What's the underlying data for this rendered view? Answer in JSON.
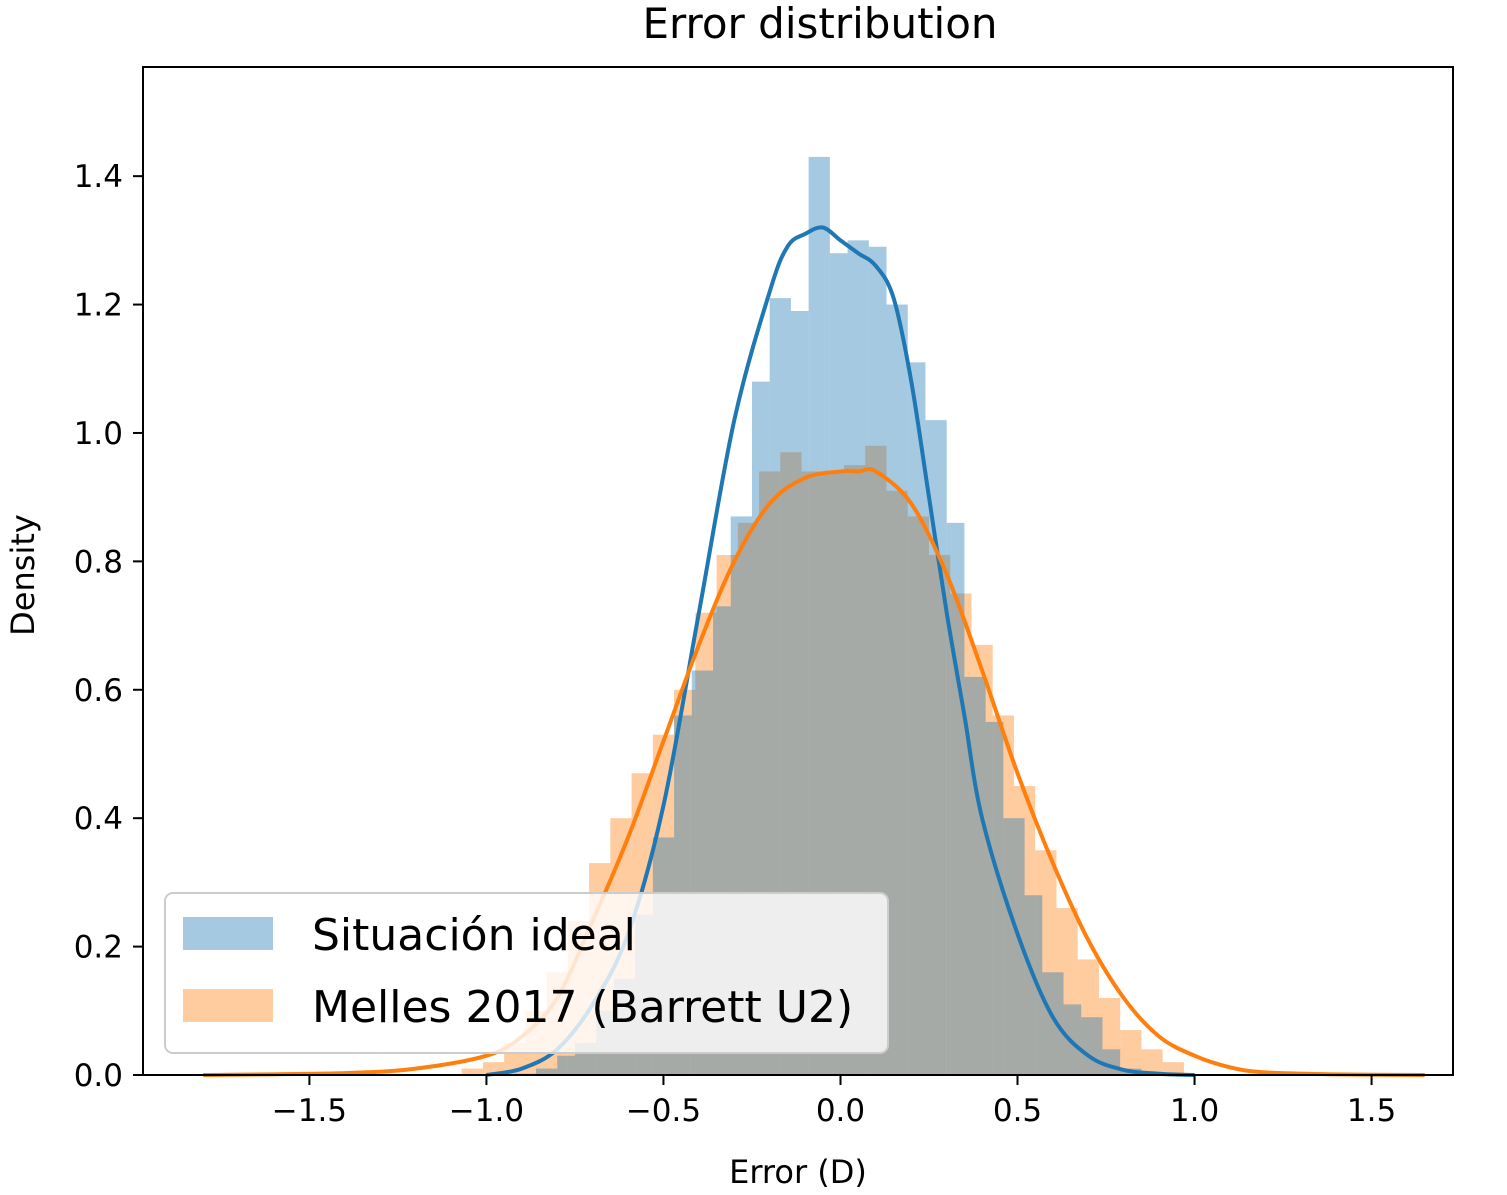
{
  "chart_data": {
    "type": "histogram+kde",
    "title": "Error distribution",
    "xlabel": "Error (D)",
    "ylabel": "Density",
    "xlim": [
      -1.97,
      1.73
    ],
    "ylim": [
      0,
      1.57
    ],
    "xticks": [
      -1.5,
      -1.0,
      -0.5,
      0.0,
      0.5,
      1.0,
      1.5
    ],
    "xtick_labels": [
      "−1.5",
      "−1.0",
      "−0.5",
      "0.0",
      "0.5",
      "1.0",
      "1.5"
    ],
    "yticks": [
      0.0,
      0.2,
      0.4,
      0.6,
      0.8,
      1.0,
      1.2,
      1.4
    ],
    "ytick_labels": [
      "0.0",
      "0.2",
      "0.4",
      "0.6",
      "0.8",
      "1.0",
      "1.2",
      "1.4"
    ],
    "grid": false,
    "legend_position": "lower-left",
    "series": [
      {
        "name": "Situación ideal",
        "color": "#1f77b4",
        "hist_alpha": 0.4,
        "bin_edges": [
          -0.92,
          -0.86,
          -0.8,
          -0.75,
          -0.69,
          -0.64,
          -0.58,
          -0.53,
          -0.47,
          -0.42,
          -0.36,
          -0.31,
          -0.25,
          -0.2,
          -0.14,
          -0.09,
          -0.03,
          0.02,
          0.08,
          0.13,
          0.19,
          0.24,
          0.3,
          0.35,
          0.41,
          0.46,
          0.52,
          0.57,
          0.63,
          0.68,
          0.74,
          0.79,
          0.85
        ],
        "hist_values": [
          0.002,
          0.01,
          0.03,
          0.05,
          0.1,
          0.15,
          0.25,
          0.37,
          0.56,
          0.63,
          0.73,
          0.87,
          1.08,
          1.21,
          1.19,
          1.43,
          1.28,
          1.3,
          1.29,
          1.2,
          1.11,
          1.02,
          0.86,
          0.62,
          0.55,
          0.4,
          0.28,
          0.16,
          0.11,
          0.09,
          0.04,
          0.01
        ],
        "kde_x": [
          -1.0,
          -0.9,
          -0.8,
          -0.7,
          -0.6,
          -0.5,
          -0.4,
          -0.3,
          -0.2,
          -0.15,
          -0.1,
          -0.05,
          0.0,
          0.05,
          0.1,
          0.15,
          0.2,
          0.25,
          0.3,
          0.35,
          0.4,
          0.5,
          0.6,
          0.7,
          0.8,
          0.9,
          1.0
        ],
        "kde_y": [
          0.0,
          0.01,
          0.04,
          0.11,
          0.22,
          0.42,
          0.72,
          1.02,
          1.22,
          1.29,
          1.31,
          1.32,
          1.3,
          1.28,
          1.26,
          1.21,
          1.08,
          0.9,
          0.72,
          0.56,
          0.4,
          0.22,
          0.09,
          0.03,
          0.008,
          0.002,
          0.0
        ]
      },
      {
        "name": "Melles 2017 (Barrett U2)",
        "color": "#ff7f0e",
        "hist_alpha": 0.4,
        "bin_edges": [
          -1.07,
          -1.01,
          -0.95,
          -0.89,
          -0.83,
          -0.77,
          -0.71,
          -0.65,
          -0.59,
          -0.53,
          -0.47,
          -0.41,
          -0.35,
          -0.29,
          -0.23,
          -0.17,
          -0.11,
          -0.05,
          0.01,
          0.07,
          0.13,
          0.19,
          0.25,
          0.31,
          0.37,
          0.43,
          0.49,
          0.55,
          0.61,
          0.67,
          0.73,
          0.79,
          0.85,
          0.91,
          0.97
        ],
        "hist_values": [
          0.01,
          0.02,
          0.05,
          0.1,
          0.16,
          0.24,
          0.33,
          0.4,
          0.47,
          0.53,
          0.6,
          0.72,
          0.81,
          0.86,
          0.94,
          0.97,
          0.94,
          0.94,
          0.95,
          0.98,
          0.91,
          0.87,
          0.81,
          0.75,
          0.67,
          0.56,
          0.45,
          0.35,
          0.26,
          0.18,
          0.12,
          0.07,
          0.04,
          0.02
        ],
        "kde_x": [
          -1.8,
          -1.4,
          -1.2,
          -1.0,
          -0.9,
          -0.8,
          -0.7,
          -0.6,
          -0.5,
          -0.4,
          -0.3,
          -0.2,
          -0.1,
          0.0,
          0.05,
          0.1,
          0.2,
          0.3,
          0.4,
          0.5,
          0.6,
          0.7,
          0.8,
          0.9,
          1.0,
          1.1,
          1.2,
          1.4,
          1.65
        ],
        "kde_y": [
          0.0,
          0.003,
          0.01,
          0.03,
          0.06,
          0.12,
          0.24,
          0.37,
          0.52,
          0.67,
          0.8,
          0.89,
          0.93,
          0.94,
          0.94,
          0.94,
          0.89,
          0.78,
          0.63,
          0.47,
          0.33,
          0.21,
          0.12,
          0.06,
          0.03,
          0.012,
          0.004,
          0.001,
          0.0
        ]
      }
    ]
  },
  "colors": {
    "blue": "#1f77b4",
    "orange": "#ff7f0e"
  }
}
